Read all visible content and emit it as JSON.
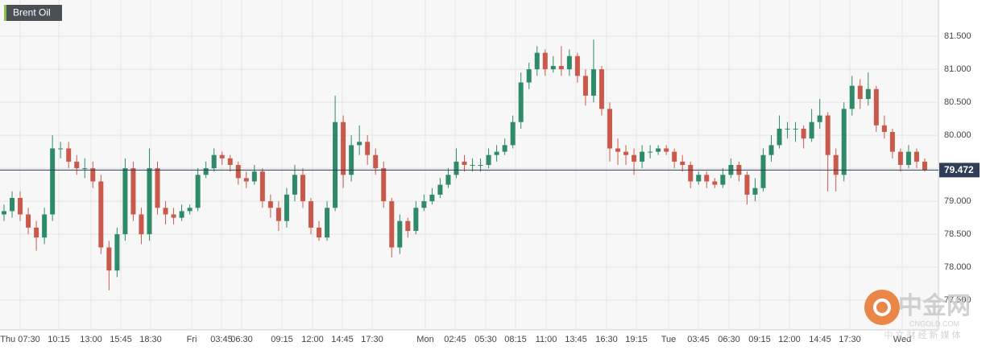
{
  "chart_data": {
    "type": "candlestick",
    "title": "Brent Oil",
    "categories": [
      "Thu 07:30",
      "10:15",
      "13:00",
      "15:45",
      "18:30",
      "Fri",
      "03:45",
      "06:30",
      "09:15",
      "12:00",
      "14:45",
      "17:30",
      "Mon",
      "02:45",
      "05:30",
      "08:15",
      "11:00",
      "13:45",
      "16:30",
      "19:15",
      "Tue",
      "03:45",
      "06:30",
      "09:15",
      "12:00",
      "14:45",
      "17:30",
      "Wed"
    ],
    "up_color": "#2f8a68",
    "down_color": "#c95a4b",
    "grid": true,
    "ylim": [
      77.05,
      82.05
    ],
    "yticks": [
      {
        "value": 77.5,
        "label": "77.500"
      },
      {
        "value": 78,
        "label": "78.000"
      },
      {
        "value": 78.5,
        "label": "78.500"
      },
      {
        "value": 79,
        "label": "79.000"
      },
      {
        "value": 79.5,
        "label": "79.500"
      },
      {
        "value": 80,
        "label": "80.000"
      },
      {
        "value": 80.5,
        "label": "80.500"
      },
      {
        "value": 81,
        "label": "81.000"
      },
      {
        "value": 81.5,
        "label": "81.500"
      }
    ],
    "last_price": 79.472,
    "ohlc": [
      [
        78.8,
        78.95,
        78.7,
        78.85
      ],
      [
        78.85,
        79.15,
        78.75,
        79.05
      ],
      [
        79.05,
        79.15,
        78.7,
        78.8
      ],
      [
        78.8,
        78.9,
        78.5,
        78.6
      ],
      [
        78.6,
        78.7,
        78.25,
        78.45
      ],
      [
        78.45,
        78.9,
        78.35,
        78.8
      ],
      [
        78.8,
        80.0,
        78.7,
        79.8
      ],
      [
        79.8,
        79.9,
        79.65,
        79.8
      ],
      [
        79.8,
        79.9,
        79.5,
        79.6
      ],
      [
        79.6,
        79.7,
        79.4,
        79.5
      ],
      [
        79.5,
        79.65,
        79.35,
        79.5
      ],
      [
        79.5,
        79.6,
        79.2,
        79.3
      ],
      [
        79.3,
        79.4,
        78.2,
        78.3
      ],
      [
        78.3,
        78.4,
        77.65,
        77.95
      ],
      [
        77.95,
        78.6,
        77.85,
        78.5
      ],
      [
        78.5,
        79.65,
        78.4,
        79.5
      ],
      [
        79.5,
        79.6,
        78.7,
        78.8
      ],
      [
        78.8,
        78.9,
        78.35,
        78.5
      ],
      [
        78.5,
        79.8,
        78.4,
        79.5
      ],
      [
        79.5,
        79.6,
        78.8,
        78.9
      ],
      [
        78.9,
        79.0,
        78.65,
        78.8
      ],
      [
        78.8,
        78.9,
        78.65,
        78.75
      ],
      [
        78.75,
        78.95,
        78.7,
        78.85
      ],
      [
        78.85,
        78.95,
        78.8,
        78.9
      ],
      [
        78.9,
        79.5,
        78.85,
        79.4
      ],
      [
        79.4,
        79.6,
        79.35,
        79.5
      ],
      [
        79.5,
        79.8,
        79.45,
        79.7
      ],
      [
        79.7,
        79.75,
        79.55,
        79.65
      ],
      [
        79.65,
        79.7,
        79.45,
        79.55
      ],
      [
        79.55,
        79.6,
        79.25,
        79.35
      ],
      [
        79.35,
        79.45,
        79.2,
        79.3
      ],
      [
        79.3,
        79.55,
        79.25,
        79.45
      ],
      [
        79.45,
        79.5,
        78.9,
        79.0
      ],
      [
        79.0,
        79.1,
        78.75,
        78.9
      ],
      [
        78.9,
        79.0,
        78.55,
        78.7
      ],
      [
        78.7,
        79.2,
        78.6,
        79.1
      ],
      [
        79.1,
        79.55,
        79.0,
        79.4
      ],
      [
        79.4,
        79.5,
        78.9,
        79.0
      ],
      [
        79.0,
        79.05,
        78.5,
        78.6
      ],
      [
        78.6,
        78.7,
        78.4,
        78.45
      ],
      [
        78.45,
        79.0,
        78.4,
        78.9
      ],
      [
        78.9,
        80.6,
        78.85,
        80.2
      ],
      [
        80.2,
        80.3,
        79.2,
        79.4
      ],
      [
        79.4,
        80.0,
        79.3,
        79.85
      ],
      [
        79.85,
        80.15,
        79.7,
        79.9
      ],
      [
        79.9,
        80.0,
        79.55,
        79.7
      ],
      [
        79.7,
        79.8,
        79.4,
        79.5
      ],
      [
        79.5,
        79.6,
        78.9,
        79.0
      ],
      [
        79.0,
        79.05,
        78.15,
        78.3
      ],
      [
        78.3,
        78.8,
        78.2,
        78.7
      ],
      [
        78.7,
        78.75,
        78.45,
        78.55
      ],
      [
        78.55,
        79.0,
        78.5,
        78.9
      ],
      [
        78.9,
        79.1,
        78.85,
        79.0
      ],
      [
        79.0,
        79.2,
        78.95,
        79.1
      ],
      [
        79.1,
        79.35,
        79.05,
        79.25
      ],
      [
        79.25,
        79.5,
        79.2,
        79.4
      ],
      [
        79.4,
        79.8,
        79.35,
        79.6
      ],
      [
        79.6,
        79.7,
        79.45,
        79.55
      ],
      [
        79.55,
        79.65,
        79.45,
        79.55
      ],
      [
        79.55,
        79.65,
        79.45,
        79.55
      ],
      [
        79.55,
        79.8,
        79.5,
        79.7
      ],
      [
        79.7,
        79.85,
        79.6,
        79.75
      ],
      [
        79.75,
        79.95,
        79.7,
        79.85
      ],
      [
        79.85,
        80.3,
        79.8,
        80.2
      ],
      [
        80.2,
        80.95,
        80.1,
        80.8
      ],
      [
        80.8,
        81.1,
        80.7,
        81.0
      ],
      [
        81.0,
        81.35,
        80.9,
        81.25
      ],
      [
        81.25,
        81.3,
        80.9,
        81.0
      ],
      [
        81.0,
        81.2,
        80.95,
        81.05
      ],
      [
        81.05,
        81.35,
        80.9,
        81.0
      ],
      [
        81.0,
        81.3,
        80.9,
        81.2
      ],
      [
        81.2,
        81.25,
        80.8,
        80.9
      ],
      [
        80.9,
        81.0,
        80.45,
        80.6
      ],
      [
        80.6,
        81.45,
        80.5,
        81.0
      ],
      [
        81.0,
        81.05,
        80.3,
        80.4
      ],
      [
        80.4,
        80.5,
        79.6,
        79.8
      ],
      [
        79.8,
        79.95,
        79.55,
        79.75
      ],
      [
        79.75,
        79.85,
        79.55,
        79.7
      ],
      [
        79.7,
        79.8,
        79.4,
        79.6
      ],
      [
        79.6,
        79.85,
        79.5,
        79.75
      ],
      [
        79.75,
        79.85,
        79.65,
        79.75
      ],
      [
        79.75,
        79.85,
        79.7,
        79.8
      ],
      [
        79.8,
        79.85,
        79.7,
        79.75
      ],
      [
        79.75,
        79.8,
        79.5,
        79.6
      ],
      [
        79.6,
        79.7,
        79.45,
        79.55
      ],
      [
        79.55,
        79.6,
        79.2,
        79.3
      ],
      [
        79.3,
        79.45,
        79.25,
        79.4
      ],
      [
        79.4,
        79.45,
        79.2,
        79.3
      ],
      [
        79.3,
        79.35,
        79.2,
        79.25
      ],
      [
        79.25,
        79.5,
        79.2,
        79.4
      ],
      [
        79.4,
        79.65,
        79.35,
        79.55
      ],
      [
        79.55,
        79.6,
        79.3,
        79.4
      ],
      [
        79.4,
        79.45,
        78.95,
        79.1
      ],
      [
        79.1,
        79.35,
        79.0,
        79.2
      ],
      [
        79.2,
        79.8,
        79.15,
        79.7
      ],
      [
        79.7,
        80.0,
        79.6,
        79.85
      ],
      [
        79.85,
        80.3,
        79.8,
        80.1
      ],
      [
        80.1,
        80.2,
        79.95,
        80.1
      ],
      [
        80.1,
        80.2,
        79.9,
        80.1
      ],
      [
        80.1,
        80.15,
        79.8,
        79.95
      ],
      [
        79.95,
        80.4,
        79.9,
        80.2
      ],
      [
        80.2,
        80.55,
        80.1,
        80.3
      ],
      [
        80.3,
        80.35,
        79.15,
        79.7
      ],
      [
        79.7,
        79.8,
        79.15,
        79.4
      ],
      [
        79.4,
        80.5,
        79.3,
        80.4
      ],
      [
        80.4,
        80.9,
        80.3,
        80.75
      ],
      [
        80.75,
        80.85,
        80.4,
        80.55
      ],
      [
        80.55,
        80.95,
        80.45,
        80.7
      ],
      [
        80.7,
        80.75,
        80.05,
        80.15
      ],
      [
        80.15,
        80.3,
        79.95,
        80.05
      ],
      [
        80.05,
        80.1,
        79.65,
        79.75
      ],
      [
        79.75,
        79.8,
        79.45,
        79.55
      ],
      [
        79.55,
        79.85,
        79.5,
        79.75
      ],
      [
        79.75,
        79.8,
        79.5,
        79.6
      ],
      [
        79.6,
        79.65,
        79.45,
        79.47
      ]
    ]
  },
  "watermark": {
    "brand": "中金网",
    "site": "CNGOLD.COM",
    "tagline": "中 文 财 经 新 媒 体"
  }
}
